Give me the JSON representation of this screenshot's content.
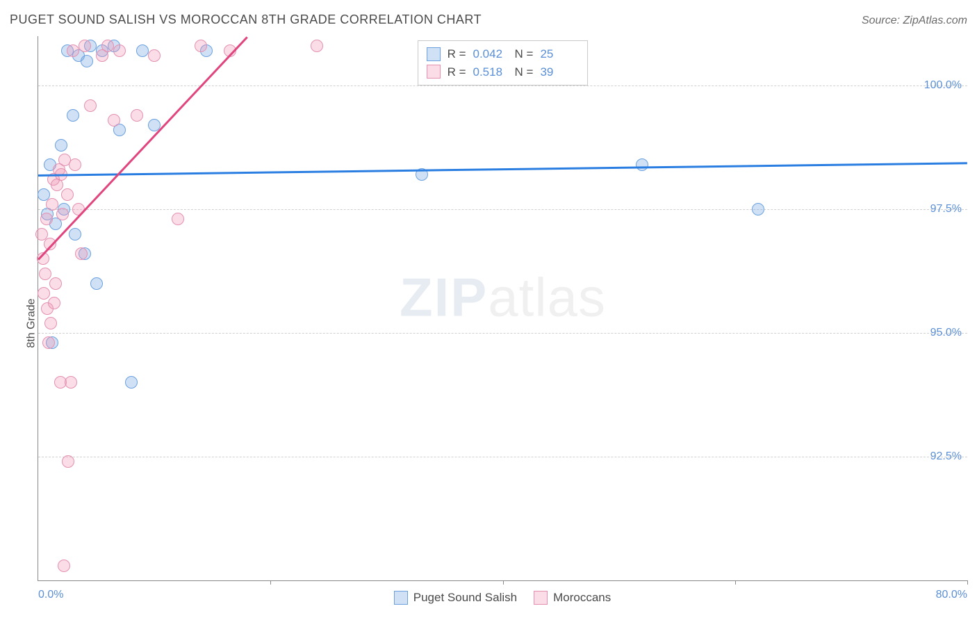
{
  "title": "PUGET SOUND SALISH VS MOROCCAN 8TH GRADE CORRELATION CHART",
  "source": "Source: ZipAtlas.com",
  "y_axis_label": "8th Grade",
  "watermark": {
    "part1": "ZIP",
    "part2": "atlas"
  },
  "colors": {
    "series_a_fill": "rgba(120,170,230,0.35)",
    "series_a_stroke": "#6aa0de",
    "series_b_fill": "rgba(240,150,180,0.32)",
    "series_b_stroke": "#e48fb0",
    "trend_a": "#2a7de1",
    "trend_b": "#e0457e",
    "grid": "#d0d0d0",
    "axis": "#888888",
    "tick_text": "#5a8fd6",
    "text": "#4a4a4a"
  },
  "chart": {
    "type": "scatter",
    "xlim": [
      0,
      80
    ],
    "ylim": [
      90,
      101
    ],
    "y_ticks": [
      92.5,
      95.0,
      97.5,
      100.0
    ],
    "y_tick_labels": [
      "92.5%",
      "95.0%",
      "97.5%",
      "100.0%"
    ],
    "x_ticks": [
      0,
      20,
      40,
      60,
      80
    ],
    "x_tick_labels": [
      "0.0%",
      "",
      "",
      "",
      "80.0%"
    ],
    "marker_radius": 9,
    "series": [
      {
        "name": "Puget Sound Salish",
        "key": "a",
        "R": "0.042",
        "N": "25",
        "trend": {
          "x1": 0,
          "y1": 98.2,
          "x2": 80,
          "y2": 98.45
        },
        "points": [
          [
            0.5,
            97.8
          ],
          [
            0.8,
            97.4
          ],
          [
            1.0,
            98.4
          ],
          [
            1.2,
            94.8
          ],
          [
            1.5,
            97.2
          ],
          [
            2.0,
            98.8
          ],
          [
            2.2,
            97.5
          ],
          [
            2.5,
            100.7
          ],
          [
            3.0,
            99.4
          ],
          [
            3.2,
            97.0
          ],
          [
            3.5,
            100.6
          ],
          [
            4.0,
            96.6
          ],
          [
            4.2,
            100.5
          ],
          [
            4.5,
            100.8
          ],
          [
            5.0,
            96.0
          ],
          [
            5.5,
            100.7
          ],
          [
            6.5,
            100.8
          ],
          [
            7.0,
            99.1
          ],
          [
            8.0,
            94.0
          ],
          [
            9.0,
            100.7
          ],
          [
            10.0,
            99.2
          ],
          [
            14.5,
            100.7
          ],
          [
            33.0,
            98.2
          ],
          [
            52.0,
            98.4
          ],
          [
            62.0,
            97.5
          ]
        ]
      },
      {
        "name": "Moroccans",
        "key": "b",
        "R": "0.518",
        "N": "39",
        "trend": {
          "x1": 0,
          "y1": 96.5,
          "x2": 18,
          "y2": 101
        },
        "points": [
          [
            0.3,
            97.0
          ],
          [
            0.4,
            96.5
          ],
          [
            0.5,
            95.8
          ],
          [
            0.6,
            96.2
          ],
          [
            0.7,
            97.3
          ],
          [
            0.8,
            95.5
          ],
          [
            0.9,
            94.8
          ],
          [
            1.0,
            96.8
          ],
          [
            1.1,
            95.2
          ],
          [
            1.2,
            97.6
          ],
          [
            1.3,
            98.1
          ],
          [
            1.4,
            95.6
          ],
          [
            1.5,
            96.0
          ],
          [
            1.6,
            98.0
          ],
          [
            1.8,
            98.3
          ],
          [
            1.9,
            94.0
          ],
          [
            2.0,
            98.2
          ],
          [
            2.1,
            97.4
          ],
          [
            2.2,
            90.3
          ],
          [
            2.3,
            98.5
          ],
          [
            2.5,
            97.8
          ],
          [
            2.6,
            92.4
          ],
          [
            2.8,
            94.0
          ],
          [
            3.0,
            100.7
          ],
          [
            3.2,
            98.4
          ],
          [
            3.5,
            97.5
          ],
          [
            3.7,
            96.6
          ],
          [
            4.0,
            100.8
          ],
          [
            4.5,
            99.6
          ],
          [
            5.5,
            100.6
          ],
          [
            6.0,
            100.8
          ],
          [
            6.5,
            99.3
          ],
          [
            7.0,
            100.7
          ],
          [
            8.5,
            99.4
          ],
          [
            10.0,
            100.6
          ],
          [
            12.0,
            97.3
          ],
          [
            14.0,
            100.8
          ],
          [
            16.5,
            100.7
          ],
          [
            24.0,
            100.8
          ]
        ]
      }
    ]
  },
  "stats_box": {
    "rows": [
      {
        "swatch": "a",
        "R_label": "R =",
        "R": "0.042",
        "N_label": "N =",
        "N": "25"
      },
      {
        "swatch": "b",
        "R_label": "R =",
        "R": "0.518",
        "N_label": "N =",
        "N": "39"
      }
    ]
  },
  "legend": {
    "items": [
      {
        "swatch": "a",
        "label": "Puget Sound Salish"
      },
      {
        "swatch": "b",
        "label": "Moroccans"
      }
    ]
  }
}
